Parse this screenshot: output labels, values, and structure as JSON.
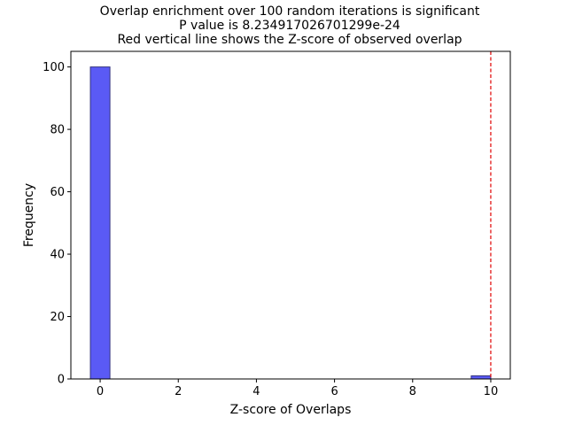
{
  "chart_data": {
    "type": "bar",
    "title_lines": [
      "Overlap enrichment over 100 random iterations is significant",
      "P value is 8.234917026701299e-24",
      "Red vertical line shows the Z-score of observed overlap"
    ],
    "xlabel": "Z-score of Overlaps",
    "ylabel": "Frequency",
    "xlim": [
      -0.75,
      10.5
    ],
    "ylim": [
      0,
      105
    ],
    "x_ticks": [
      0,
      2,
      4,
      6,
      8,
      10
    ],
    "y_ticks": [
      0,
      20,
      40,
      60,
      80,
      100
    ],
    "bin_width": 0.5,
    "bins": [
      {
        "x_start": -0.25,
        "x_end": 0.25,
        "count": 100
      },
      {
        "x_start": 9.5,
        "x_end": 10.0,
        "count": 1
      }
    ],
    "observed_zscore": 10.0,
    "bar_color": "#5a5af5",
    "bar_edge_color": "#333380",
    "line_color": "#e00000",
    "grid": false
  }
}
